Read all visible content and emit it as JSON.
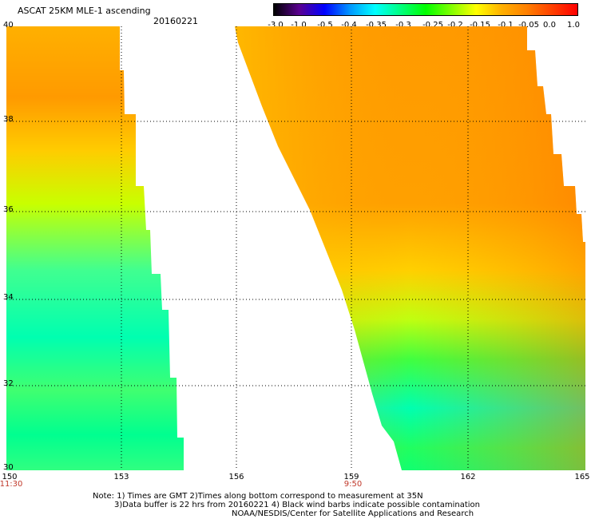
{
  "header": {
    "title": "ASCAT 25KM MLE-1 ascending",
    "date": "20160221"
  },
  "colorbar": {
    "labels": [
      "-3.0",
      "-1.0",
      "-0.5",
      "-0.4",
      "-0.35",
      "-0.3",
      "-0.25",
      "-0.2",
      "-0.15",
      "-0.1",
      "-0.05",
      "0.0",
      "1.0"
    ],
    "stops": [
      "#000000",
      "#5a0090",
      "#0000ff",
      "#0096ff",
      "#00ffff",
      "#00ff80",
      "#00ff00",
      "#80ff00",
      "#ffff00",
      "#ffb000",
      "#ff8000",
      "#ff4000",
      "#ff0000"
    ]
  },
  "axes": {
    "lat_labels": [
      "40",
      "38",
      "36",
      "34",
      "32",
      "30"
    ],
    "lon_labels": [
      "150",
      "153",
      "156",
      "159",
      "162",
      "165"
    ],
    "times": [
      {
        "text": "11:30",
        "lon": "150"
      },
      {
        "text": "9:50",
        "lon": "159"
      }
    ]
  },
  "notes": [
    "Note: 1) Times are GMT 2)Times along bottom correspond to measurement at 35N",
    "3)Data buffer is 22 hrs from 20160221 4) Black wind barbs indicate possible contamination",
    "NOAA/NESDIS/Center for Satellite Applications and Research"
  ]
}
